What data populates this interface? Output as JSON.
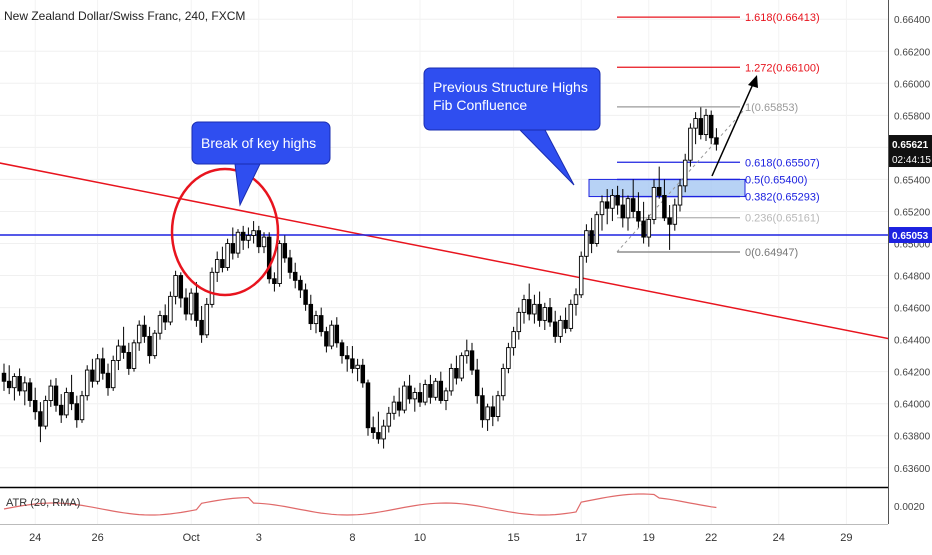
{
  "chart_data": {
    "type": "candlestick",
    "title": "New Zealand Dollar/Swiss Franc, 240, FXCM",
    "y_ticks": [
      "0.66400",
      "0.66200",
      "0.66000",
      "0.65800",
      "0.65600",
      "0.65400",
      "0.65200",
      "0.65000",
      "0.64800",
      "0.64600",
      "0.64400",
      "0.64200",
      "0.64000",
      "0.63800",
      "0.63600"
    ],
    "ylim": [
      0.6348,
      0.6652
    ],
    "x_ticks": [
      "24",
      "26",
      "Oct",
      "3",
      "8",
      "10",
      "15",
      "17",
      "19",
      "22",
      "24",
      "29"
    ],
    "x_tick_bars": [
      6,
      18,
      36,
      49,
      67,
      80,
      98,
      111,
      124,
      136,
      149,
      162
    ],
    "current_price": "0.65621",
    "countdown": "02:44:15",
    "horizontal_line": {
      "value": 0.65053,
      "label": "0.65053"
    },
    "trendline": {
      "from": {
        "bar": -2,
        "price": 0.6551
      },
      "to": {
        "bar": 175,
        "price": 0.64375
      }
    },
    "fib_levels": [
      {
        "label": "1.618(0.66413)",
        "price": 0.66413,
        "color": "#e8141e"
      },
      {
        "label": "1.272(0.66100)",
        "price": 0.661,
        "color": "#e8141e"
      },
      {
        "label": "1(0.65853)",
        "price": 0.65853,
        "color": "#9a9a9a"
      },
      {
        "label": "0.618(0.65507)",
        "price": 0.65507,
        "color": "#1d22e0"
      },
      {
        "label": "0.5(0.65400)",
        "price": 0.654,
        "color": "#1d22e0"
      },
      {
        "label": "0.382(0.65293)",
        "price": 0.65293,
        "color": "#1d22e0"
      },
      {
        "label": "0.236(0.65161)",
        "price": 0.65161,
        "color": "#b9b9b9"
      },
      {
        "label": "0(0.64947)",
        "price": 0.64947,
        "color": "#777777"
      }
    ],
    "annotations": [
      {
        "text": "Break of key highs"
      },
      {
        "text": "Previous Structure Highs\nFib Confluence"
      }
    ],
    "indicator": {
      "label": "ATR (20, RMA)",
      "tick": "0.0020",
      "color": "#e06a6a"
    },
    "candles": [
      [
        0.6419,
        0.6425,
        0.6408,
        0.6414
      ],
      [
        0.6414,
        0.6424,
        0.6406,
        0.641
      ],
      [
        0.641,
        0.6419,
        0.6402,
        0.6417
      ],
      [
        0.6417,
        0.6422,
        0.6405,
        0.6408
      ],
      [
        0.6408,
        0.6417,
        0.6399,
        0.6413
      ],
      [
        0.6413,
        0.6416,
        0.6398,
        0.6402
      ],
      [
        0.6402,
        0.641,
        0.639,
        0.6395
      ],
      [
        0.6395,
        0.6401,
        0.6376,
        0.6386
      ],
      [
        0.6386,
        0.6405,
        0.6384,
        0.6402
      ],
      [
        0.6402,
        0.6415,
        0.6398,
        0.6411
      ],
      [
        0.6411,
        0.6416,
        0.6395,
        0.6399
      ],
      [
        0.6399,
        0.6406,
        0.6388,
        0.6393
      ],
      [
        0.6393,
        0.641,
        0.6391,
        0.6407
      ],
      [
        0.6407,
        0.6418,
        0.6396,
        0.64
      ],
      [
        0.64,
        0.6405,
        0.6385,
        0.639
      ],
      [
        0.639,
        0.6408,
        0.6388,
        0.6405
      ],
      [
        0.6405,
        0.6424,
        0.6402,
        0.6421
      ],
      [
        0.6421,
        0.6428,
        0.641,
        0.6414
      ],
      [
        0.6414,
        0.6431,
        0.6412,
        0.6428
      ],
      [
        0.6428,
        0.6435,
        0.6415,
        0.6419
      ],
      [
        0.6419,
        0.6425,
        0.6405,
        0.641
      ],
      [
        0.641,
        0.643,
        0.6408,
        0.6427
      ],
      [
        0.6427,
        0.644,
        0.6421,
        0.6436
      ],
      [
        0.6436,
        0.6448,
        0.6428,
        0.6432
      ],
      [
        0.6432,
        0.6438,
        0.6418,
        0.6422
      ],
      [
        0.6422,
        0.644,
        0.642,
        0.6438
      ],
      [
        0.6438,
        0.6452,
        0.6433,
        0.6449
      ],
      [
        0.6449,
        0.6455,
        0.6438,
        0.6442
      ],
      [
        0.6442,
        0.6448,
        0.6425,
        0.643
      ],
      [
        0.643,
        0.6446,
        0.6428,
        0.6444
      ],
      [
        0.6444,
        0.6458,
        0.644,
        0.6455
      ],
      [
        0.6455,
        0.6462,
        0.6446,
        0.6451
      ],
      [
        0.6451,
        0.647,
        0.6449,
        0.6467
      ],
      [
        0.6467,
        0.6483,
        0.6462,
        0.648
      ],
      [
        0.648,
        0.6482,
        0.646,
        0.6466
      ],
      [
        0.6466,
        0.6472,
        0.6452,
        0.6456
      ],
      [
        0.6456,
        0.6472,
        0.6452,
        0.6469
      ],
      [
        0.6469,
        0.6476,
        0.6448,
        0.6452
      ],
      [
        0.6452,
        0.6461,
        0.6438,
        0.6443
      ],
      [
        0.6443,
        0.6466,
        0.6441,
        0.6462
      ],
      [
        0.6462,
        0.6485,
        0.646,
        0.6482
      ],
      [
        0.6482,
        0.6495,
        0.6476,
        0.649
      ],
      [
        0.649,
        0.6498,
        0.6482,
        0.6485
      ],
      [
        0.6485,
        0.6503,
        0.6483,
        0.65
      ],
      [
        0.65,
        0.651,
        0.649,
        0.6494
      ],
      [
        0.6494,
        0.6509,
        0.6491,
        0.6507
      ],
      [
        0.6507,
        0.6511,
        0.6496,
        0.6502
      ],
      [
        0.6502,
        0.651,
        0.6497,
        0.6505
      ],
      [
        0.6505,
        0.6514,
        0.65,
        0.6508
      ],
      [
        0.6508,
        0.6511,
        0.6494,
        0.6498
      ],
      [
        0.6498,
        0.6507,
        0.6494,
        0.6504
      ],
      [
        0.6504,
        0.6507,
        0.6475,
        0.6478
      ],
      [
        0.6478,
        0.6482,
        0.647,
        0.6475
      ],
      [
        0.6475,
        0.6502,
        0.6473,
        0.65
      ],
      [
        0.65,
        0.6505,
        0.6488,
        0.6491
      ],
      [
        0.6491,
        0.6496,
        0.6478,
        0.6482
      ],
      [
        0.6482,
        0.6488,
        0.6472,
        0.6477
      ],
      [
        0.6477,
        0.648,
        0.6466,
        0.6471
      ],
      [
        0.6471,
        0.6475,
        0.6458,
        0.6462
      ],
      [
        0.6462,
        0.6468,
        0.6446,
        0.645
      ],
      [
        0.645,
        0.6458,
        0.6444,
        0.6455
      ],
      [
        0.6455,
        0.646,
        0.6442,
        0.6445
      ],
      [
        0.6445,
        0.6448,
        0.6432,
        0.6436
      ],
      [
        0.6436,
        0.6452,
        0.6434,
        0.6449
      ],
      [
        0.6449,
        0.6454,
        0.6435,
        0.6438
      ],
      [
        0.6438,
        0.644,
        0.6425,
        0.643
      ],
      [
        0.643,
        0.6436,
        0.642,
        0.6428
      ],
      [
        0.6428,
        0.6436,
        0.6419,
        0.6422
      ],
      [
        0.6422,
        0.6428,
        0.6414,
        0.6424
      ],
      [
        0.6424,
        0.6428,
        0.641,
        0.6413
      ],
      [
        0.6413,
        0.6415,
        0.638,
        0.6385
      ],
      [
        0.6385,
        0.6392,
        0.6378,
        0.6382
      ],
      [
        0.6382,
        0.6395,
        0.6375,
        0.6378
      ],
      [
        0.6378,
        0.639,
        0.6372,
        0.6386
      ],
      [
        0.6386,
        0.6398,
        0.6382,
        0.6394
      ],
      [
        0.6394,
        0.6405,
        0.639,
        0.6401
      ],
      [
        0.6401,
        0.641,
        0.6392,
        0.6396
      ],
      [
        0.6396,
        0.6414,
        0.6394,
        0.6411
      ],
      [
        0.6411,
        0.6418,
        0.64,
        0.6403
      ],
      [
        0.6403,
        0.641,
        0.6395,
        0.6407
      ],
      [
        0.6407,
        0.6413,
        0.6398,
        0.6401
      ],
      [
        0.6401,
        0.6415,
        0.6399,
        0.6412
      ],
      [
        0.6412,
        0.6418,
        0.64,
        0.6404
      ],
      [
        0.6404,
        0.6416,
        0.6402,
        0.6414
      ],
      [
        0.6414,
        0.642,
        0.64,
        0.6402
      ],
      [
        0.6402,
        0.641,
        0.6396,
        0.6408
      ],
      [
        0.6408,
        0.6425,
        0.6405,
        0.6422
      ],
      [
        0.6422,
        0.643,
        0.6412,
        0.6416
      ],
      [
        0.6416,
        0.6432,
        0.6414,
        0.643
      ],
      [
        0.643,
        0.644,
        0.6425,
        0.6433
      ],
      [
        0.6433,
        0.6438,
        0.6418,
        0.6421
      ],
      [
        0.6421,
        0.6428,
        0.64,
        0.6405
      ],
      [
        0.6405,
        0.641,
        0.6385,
        0.639
      ],
      [
        0.639,
        0.64,
        0.6383,
        0.6398
      ],
      [
        0.6398,
        0.6405,
        0.6386,
        0.6392
      ],
      [
        0.6392,
        0.6408,
        0.6389,
        0.6405
      ],
      [
        0.6405,
        0.6425,
        0.6402,
        0.6422
      ],
      [
        0.6422,
        0.6438,
        0.6419,
        0.6435
      ],
      [
        0.6435,
        0.6448,
        0.643,
        0.6445
      ],
      [
        0.6445,
        0.646,
        0.644,
        0.6457
      ],
      [
        0.6457,
        0.6468,
        0.645,
        0.6465
      ],
      [
        0.6465,
        0.6475,
        0.6452,
        0.6456
      ],
      [
        0.6456,
        0.6468,
        0.645,
        0.6462
      ],
      [
        0.6462,
        0.647,
        0.6448,
        0.6452
      ],
      [
        0.6452,
        0.6463,
        0.6446,
        0.646
      ],
      [
        0.646,
        0.6466,
        0.6448,
        0.6451
      ],
      [
        0.6451,
        0.6458,
        0.6438,
        0.6442
      ],
      [
        0.6442,
        0.6455,
        0.6438,
        0.6452
      ],
      [
        0.6452,
        0.646,
        0.6444,
        0.6447
      ],
      [
        0.6447,
        0.6465,
        0.6445,
        0.6462
      ],
      [
        0.6462,
        0.6472,
        0.6455,
        0.6468
      ],
      [
        0.6468,
        0.6495,
        0.6466,
        0.6492
      ],
      [
        0.6492,
        0.6512,
        0.6488,
        0.6508
      ],
      [
        0.6508,
        0.6516,
        0.6494,
        0.65
      ],
      [
        0.65,
        0.652,
        0.6498,
        0.6518
      ],
      [
        0.6518,
        0.653,
        0.6508,
        0.6526
      ],
      [
        0.6526,
        0.6534,
        0.6512,
        0.6522
      ],
      [
        0.6522,
        0.6534,
        0.6514,
        0.653
      ],
      [
        0.653,
        0.6536,
        0.6518,
        0.6524
      ],
      [
        0.6524,
        0.6534,
        0.651,
        0.6516
      ],
      [
        0.6516,
        0.653,
        0.6508,
        0.6528
      ],
      [
        0.6528,
        0.654,
        0.6516,
        0.652
      ],
      [
        0.652,
        0.6532,
        0.651,
        0.6514
      ],
      [
        0.6514,
        0.6526,
        0.65,
        0.6504
      ],
      [
        0.6504,
        0.6518,
        0.6498,
        0.6515
      ],
      [
        0.6515,
        0.654,
        0.6512,
        0.6535
      ],
      [
        0.6535,
        0.6548,
        0.6528,
        0.653
      ],
      [
        0.653,
        0.654,
        0.6514,
        0.6516
      ],
      [
        0.6516,
        0.6524,
        0.6496,
        0.6512
      ],
      [
        0.6512,
        0.6528,
        0.6508,
        0.6524
      ],
      [
        0.6524,
        0.654,
        0.652,
        0.6536
      ],
      [
        0.6536,
        0.6556,
        0.6532,
        0.6552
      ],
      [
        0.6552,
        0.6575,
        0.6548,
        0.6572
      ],
      [
        0.6572,
        0.6582,
        0.6562,
        0.6578
      ],
      [
        0.6578,
        0.6585,
        0.6565,
        0.6568
      ],
      [
        0.6568,
        0.6584,
        0.6564,
        0.658
      ],
      [
        0.658,
        0.6583,
        0.6562,
        0.6566
      ],
      [
        0.6566,
        0.6572,
        0.6558,
        0.6562
      ]
    ]
  }
}
